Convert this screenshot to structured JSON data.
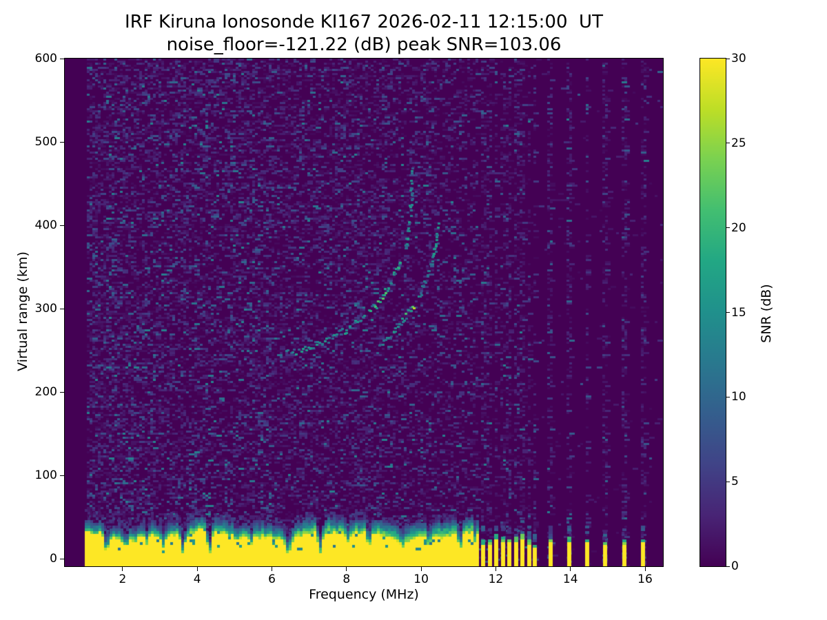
{
  "figure": {
    "title_line1": "IRF Kiruna Ionosonde KI167 2026-02-11 12:15:00  UT",
    "title_line2": "noise_floor=-121.22 (dB) peak SNR=103.06",
    "xlabel": "Frequency (MHz)",
    "ylabel": "Virtual range (km)",
    "colorbar_label": "SNR (dB)",
    "x_ticks": [
      2,
      4,
      6,
      8,
      10,
      12,
      14,
      16
    ],
    "y_ticks": [
      0,
      100,
      200,
      300,
      400,
      500,
      600
    ],
    "colorbar_ticks": [
      0,
      5,
      10,
      15,
      20,
      25,
      30
    ],
    "colors": {
      "page_background": "#ffffff",
      "cmap_low": "#440154",
      "cmap_high": "#fde725",
      "axis_text": "#000000"
    }
  },
  "chart_data": {
    "type": "heatmap",
    "title": "IRF Kiruna Ionosonde KI167 2026-02-11 12:15:00  UT",
    "subtitle": "noise_floor=-121.22 (dB) peak SNR=103.06",
    "station": "IRF Kiruna Ionosonde KI167",
    "timestamp_ut": "2026-02-11 12:15:00",
    "noise_floor_db": -121.22,
    "peak_snr_db": 103.06,
    "xlabel": "Frequency (MHz)",
    "ylabel": "Virtual range (km)",
    "xlim": [
      0.45,
      16.48
    ],
    "ylim": [
      -9,
      600
    ],
    "colormap": "viridis",
    "colorbar": {
      "label": "SNR (dB)",
      "min": 0,
      "max": 30,
      "ticks": [
        0,
        5,
        10,
        15,
        20,
        25,
        30
      ]
    },
    "sweep": {
      "start_mhz": 1.0,
      "end_mhz": 11.52,
      "ground_clutter_snr_db": 30,
      "ground_clutter_mean_top_km": 30,
      "clutter_notches_mhz_depth": [
        [
          1.57,
          0.75
        ],
        [
          2.1,
          0.45
        ],
        [
          2.65,
          0.3
        ],
        [
          3.1,
          0.55
        ],
        [
          3.62,
          0.8
        ],
        [
          4.33,
          0.85
        ],
        [
          5.05,
          0.3
        ],
        [
          5.45,
          0.35
        ],
        [
          6.43,
          0.85
        ],
        [
          7.3,
          0.8
        ],
        [
          8.05,
          0.35
        ],
        [
          8.6,
          0.6
        ],
        [
          9.5,
          0.45
        ],
        [
          10.2,
          0.4
        ],
        [
          11.05,
          0.65
        ],
        [
          11.45,
          0.4
        ]
      ]
    },
    "discrete_frequencies_mhz": {
      "cluster": [
        11.66,
        11.84,
        12.01,
        12.19,
        12.36,
        12.54,
        12.71,
        12.89
      ],
      "weak": [
        13.04
      ],
      "sparse": [
        13.47,
        13.96,
        14.44,
        14.92,
        15.44,
        15.94
      ]
    },
    "echo_traces": {
      "o_mode_f_km": [
        [
          6.45,
          247
        ],
        [
          6.9,
          252
        ],
        [
          7.4,
          261
        ],
        [
          7.9,
          272
        ],
        [
          8.4,
          287
        ],
        [
          8.8,
          305
        ],
        [
          9.1,
          325
        ],
        [
          9.35,
          345
        ],
        [
          9.55,
          368
        ],
        [
          9.68,
          395
        ],
        [
          9.74,
          425
        ],
        [
          9.77,
          473
        ]
      ],
      "x_mode_f_km": [
        [
          8.85,
          252
        ],
        [
          9.1,
          263
        ],
        [
          9.35,
          276
        ],
        [
          9.6,
          291
        ],
        [
          9.78,
          303
        ],
        [
          10.0,
          320
        ],
        [
          10.18,
          338
        ],
        [
          10.32,
          358
        ],
        [
          10.42,
          380
        ],
        [
          10.47,
          403
        ]
      ]
    }
  }
}
